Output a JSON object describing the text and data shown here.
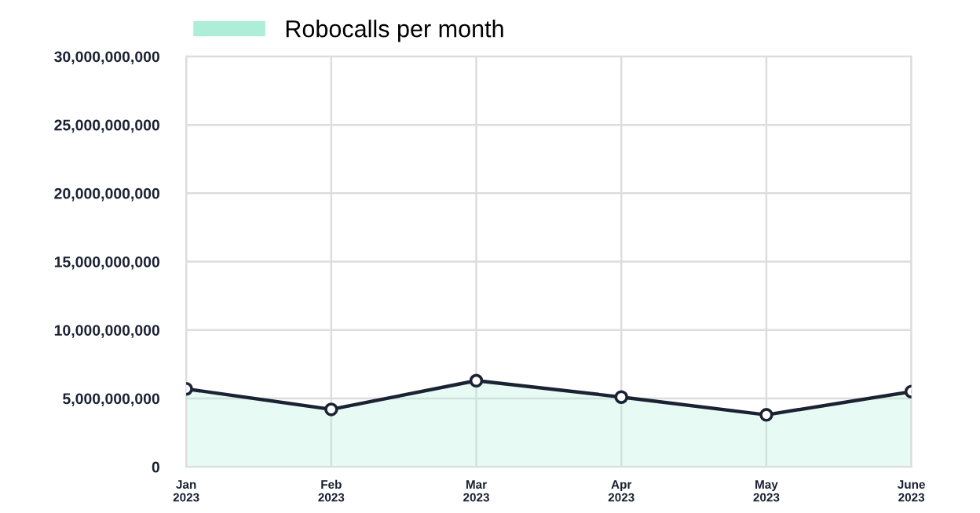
{
  "chart_data": {
    "type": "area",
    "categories": [
      "Jan\n2023",
      "Feb\n2023",
      "Mar\n2023",
      "Apr\n2023",
      "May\n2023",
      "June\n2023"
    ],
    "series": [
      {
        "name": "Robocalls per month",
        "color": "#aeeed8",
        "values": [
          5700000000,
          4200000000,
          6300000000,
          5100000000,
          3800000000,
          5500000000
        ]
      }
    ],
    "ylim": [
      0,
      30000000000
    ],
    "yticks": [
      {
        "value": 0,
        "label": "0"
      },
      {
        "value": 5000000000,
        "label": "5,000,000,000"
      },
      {
        "value": 10000000000,
        "label": "10,000,000,000"
      },
      {
        "value": 15000000000,
        "label": "15,000,000,000"
      },
      {
        "value": 20000000000,
        "label": "20,000,000,000"
      },
      {
        "value": 25000000000,
        "label": "25,000,000,000"
      },
      {
        "value": 30000000000,
        "label": "30,000,000,000"
      }
    ],
    "grid": true,
    "legend": "top left",
    "marker": "circle",
    "line_style": "solid"
  }
}
